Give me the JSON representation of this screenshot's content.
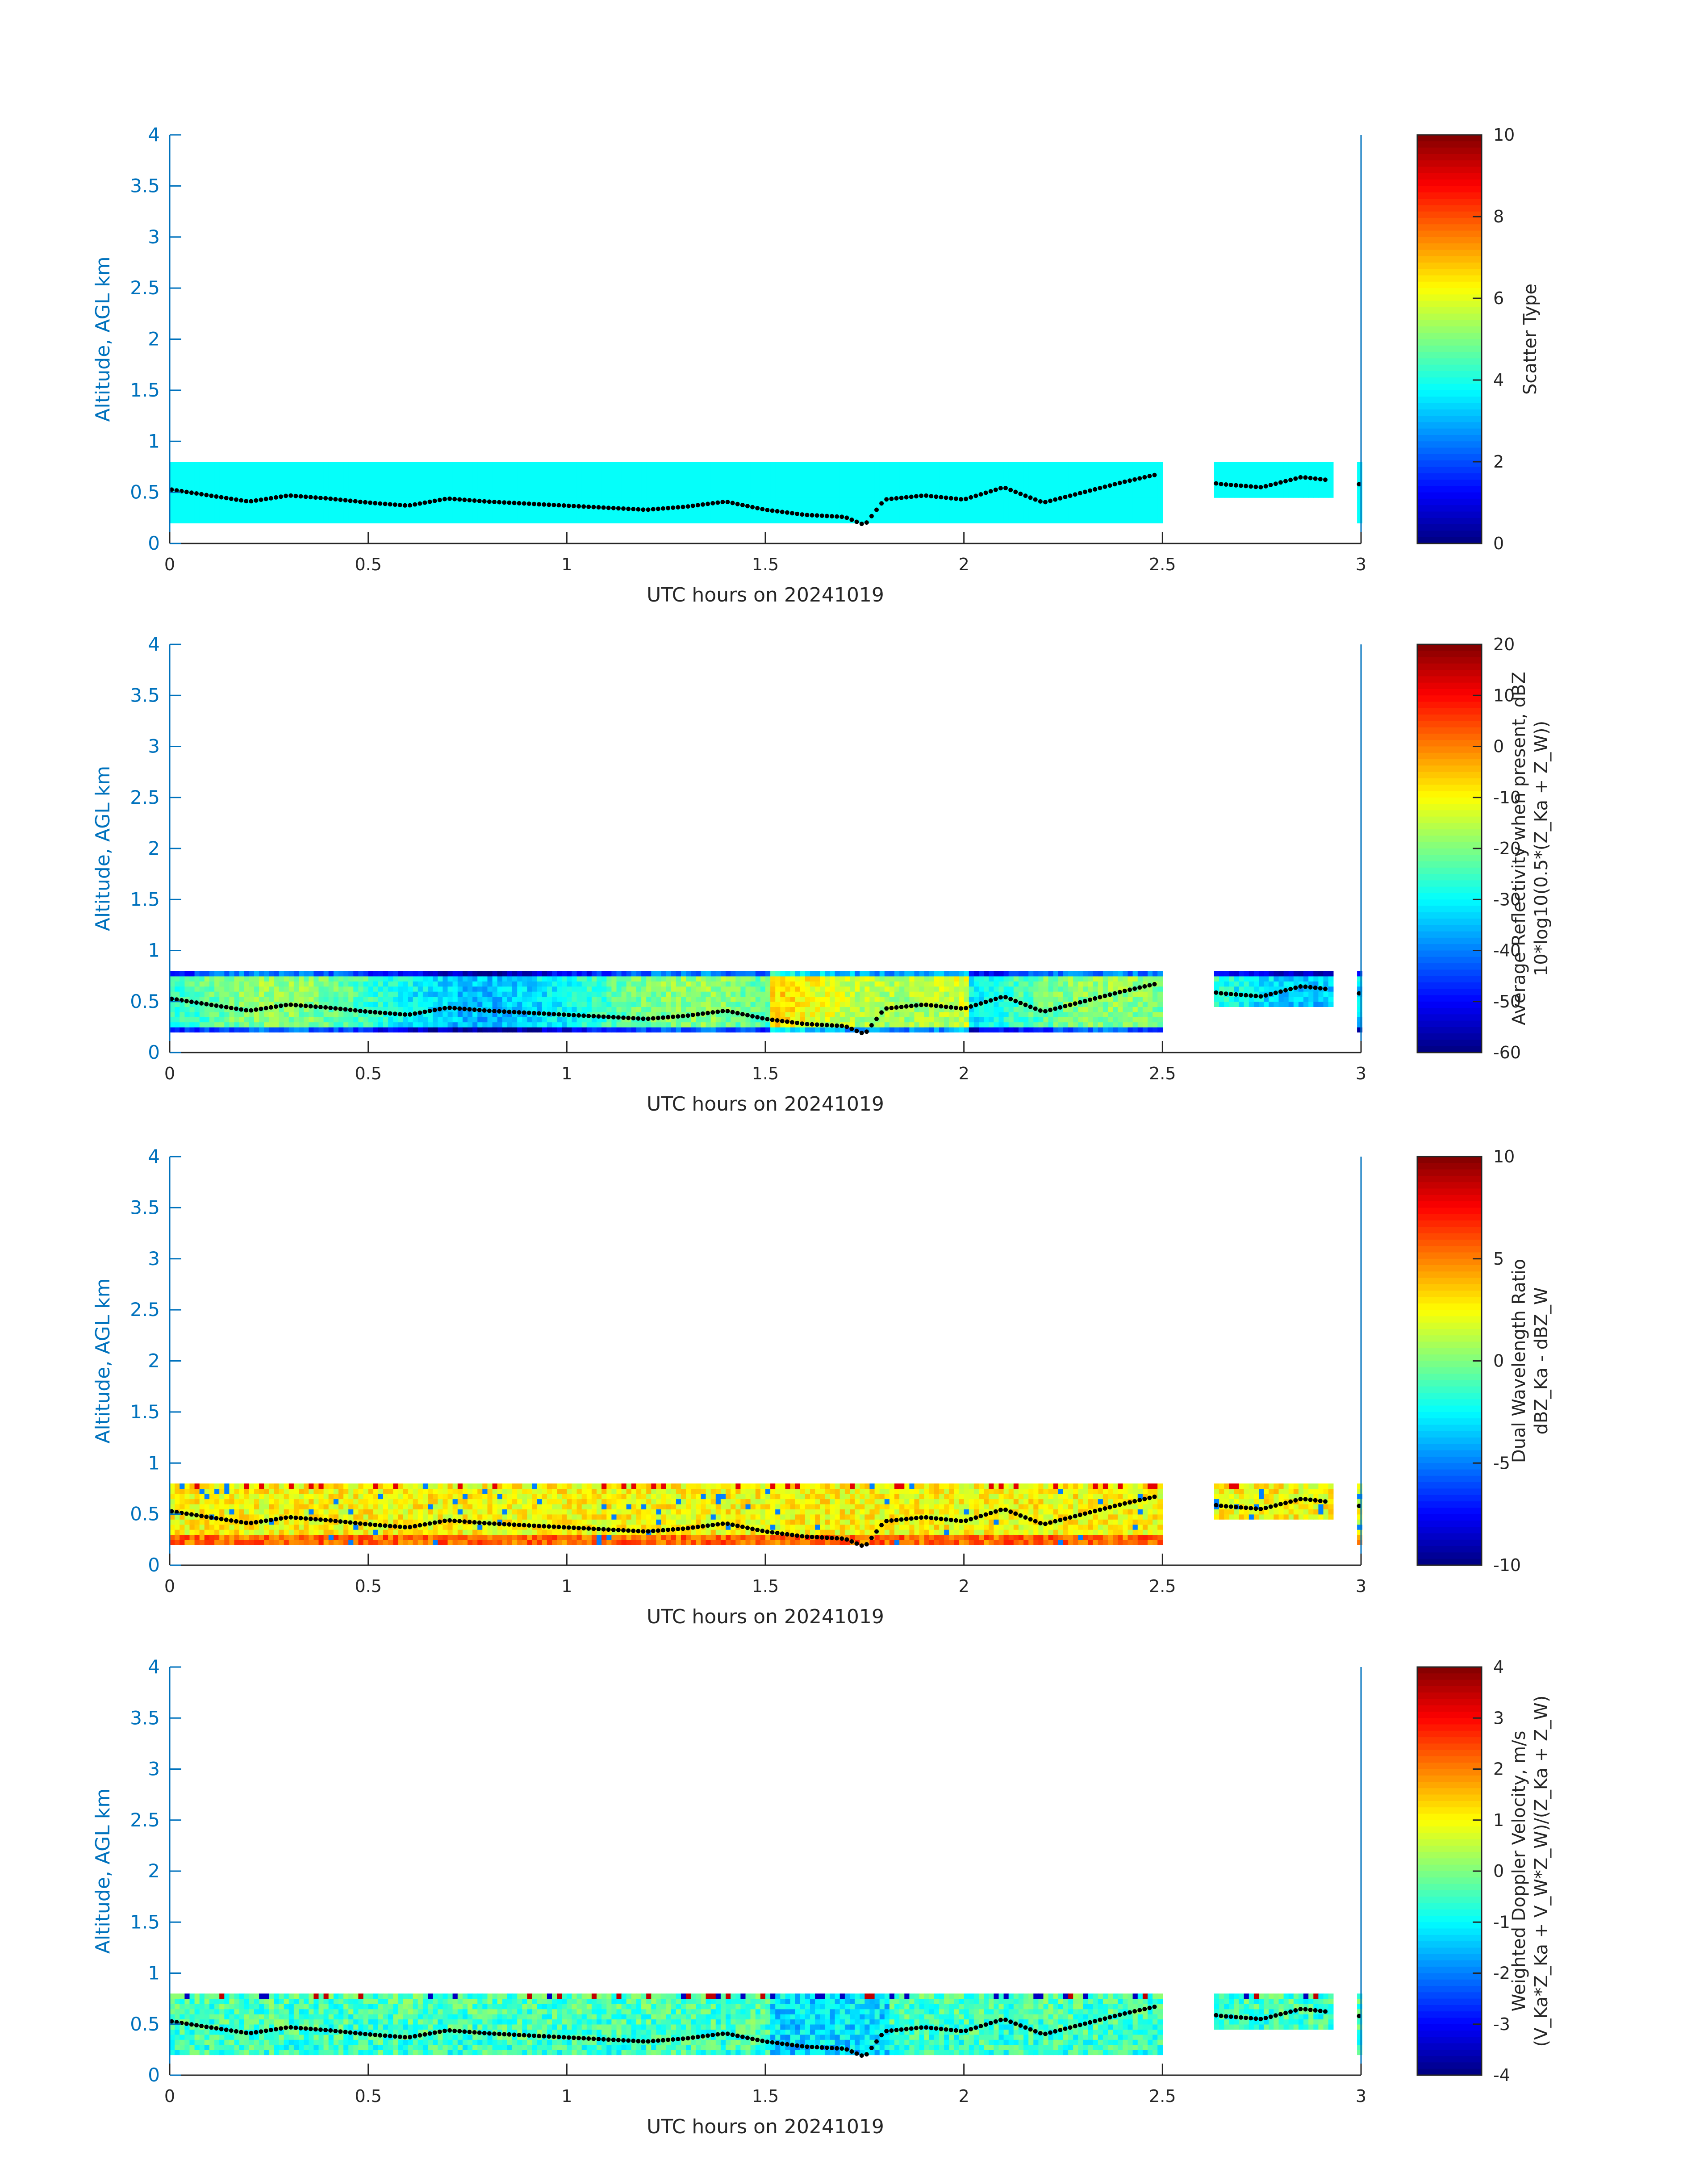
{
  "figure": {
    "axis_color": "#0072bd",
    "text_color": "#262626",
    "marker_color": "#000000",
    "colormap": "jet"
  },
  "chart_data": [
    {
      "type": "heatmap",
      "xlabel": "UTC hours on 20241019",
      "ylabel": "Altitude, AGL km",
      "xlim": [
        0,
        3
      ],
      "ylim": [
        0,
        4
      ],
      "xticks": [
        "0",
        "0.5",
        "1",
        "1.5",
        "2",
        "2.5",
        "3"
      ],
      "yticks": [
        "0",
        "0.5",
        "1",
        "1.5",
        "2",
        "2.5",
        "3",
        "3.5",
        "4"
      ],
      "colorbar": {
        "label_lines": [
          "Scatter Type"
        ],
        "range": [
          0,
          10
        ],
        "ticks": [
          "0",
          "2",
          "4",
          "6",
          "8",
          "10"
        ]
      },
      "field": "scatter_type"
    },
    {
      "type": "heatmap",
      "xlabel": "UTC hours on 20241019",
      "ylabel": "Altitude, AGL km",
      "xlim": [
        0,
        3
      ],
      "ylim": [
        0,
        4
      ],
      "xticks": [
        "0",
        "0.5",
        "1",
        "1.5",
        "2",
        "2.5",
        "3"
      ],
      "yticks": [
        "0",
        "0.5",
        "1",
        "1.5",
        "2",
        "2.5",
        "3",
        "3.5",
        "4"
      ],
      "colorbar": {
        "label_lines": [
          "Average Reflectivity when present, dBZ",
          "10*log10(0.5*(Z_Ka + Z_W))"
        ],
        "range": [
          -60,
          20
        ],
        "ticks": [
          "-60",
          "-50",
          "-40",
          "-30",
          "-20",
          "-10",
          "0",
          "10",
          "20"
        ]
      },
      "field": "reflectivity"
    },
    {
      "type": "heatmap",
      "xlabel": "UTC hours on 20241019",
      "ylabel": "Altitude, AGL km",
      "xlim": [
        0,
        3
      ],
      "ylim": [
        0,
        4
      ],
      "xticks": [
        "0",
        "0.5",
        "1",
        "1.5",
        "2",
        "2.5",
        "3"
      ],
      "yticks": [
        "0",
        "0.5",
        "1",
        "1.5",
        "2",
        "2.5",
        "3",
        "3.5",
        "4"
      ],
      "colorbar": {
        "label_lines": [
          "Dual Wavelength Ratio",
          "dBZ_Ka - dBZ_W"
        ],
        "range": [
          -10,
          10
        ],
        "ticks": [
          "-10",
          "-5",
          "0",
          "5",
          "10"
        ]
      },
      "field": "dwr"
    },
    {
      "type": "heatmap",
      "xlabel": "UTC hours on 20241019",
      "ylabel": "Altitude, AGL km",
      "xlim": [
        0,
        3
      ],
      "ylim": [
        0,
        4
      ],
      "xticks": [
        "0",
        "0.5",
        "1",
        "1.5",
        "2",
        "2.5",
        "3"
      ],
      "yticks": [
        "0",
        "0.5",
        "1",
        "1.5",
        "2",
        "2.5",
        "3",
        "3.5",
        "4"
      ],
      "colorbar": {
        "label_lines": [
          "Weighted Doppler Velocity, m/s",
          "(V_Ka*Z_Ka + V_W*Z_W)/(Z_Ka + Z_W)"
        ],
        "range": [
          -4,
          4
        ],
        "ticks": [
          "-4",
          "-3",
          "-2",
          "-1",
          "0",
          "1",
          "2",
          "3",
          "4"
        ]
      },
      "field": "velocity"
    }
  ],
  "cloud_layer": {
    "segments_hours": [
      [
        0.0,
        2.49
      ],
      [
        2.63,
        2.92
      ],
      [
        2.99,
        3.0
      ]
    ],
    "base_km": 0.2,
    "top_km": 0.77,
    "segment2_base_km": 0.45,
    "segment2_top_km": 0.8
  },
  "boundary_markers": {
    "hours": [
      0.0,
      0.1,
      0.2,
      0.3,
      0.4,
      0.5,
      0.6,
      0.7,
      0.8,
      0.9,
      1.0,
      1.1,
      1.2,
      1.3,
      1.4,
      1.5,
      1.6,
      1.7,
      1.75,
      1.8,
      1.9,
      2.0,
      2.1,
      2.2,
      2.3,
      2.4,
      2.48,
      2.65,
      2.75,
      2.85,
      2.92,
      2.99
    ],
    "altitude_km": [
      0.53,
      0.47,
      0.41,
      0.47,
      0.44,
      0.4,
      0.37,
      0.44,
      0.41,
      0.39,
      0.37,
      0.35,
      0.33,
      0.36,
      0.41,
      0.33,
      0.28,
      0.26,
      0.18,
      0.43,
      0.47,
      0.43,
      0.55,
      0.4,
      0.5,
      0.6,
      0.67,
      0.58,
      0.55,
      0.65,
      0.62,
      0.58
    ]
  }
}
